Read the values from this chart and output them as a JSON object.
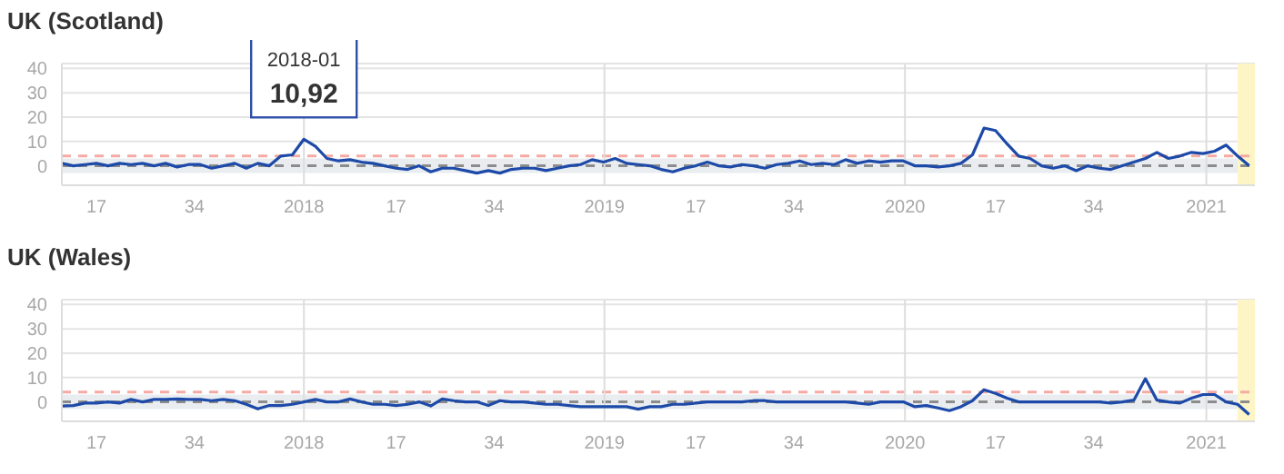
{
  "chart_data": [
    {
      "type": "line",
      "title": "UK (Scotland)",
      "marker": "none",
      "line_style": "solid",
      "grid": "y",
      "x": [
        "2017-03-13",
        "2017-03-27",
        "2017-04-10",
        "2017-04-24",
        "2017-05-08",
        "2017-05-22",
        "2017-06-05",
        "2017-06-19",
        "2017-07-03",
        "2017-07-17",
        "2017-07-31",
        "2017-08-14",
        "2017-08-28",
        "2017-09-11",
        "2017-09-25",
        "2017-10-09",
        "2017-10-23",
        "2017-11-06",
        "2017-11-20",
        "2017-12-04",
        "2017-12-18",
        "2018-01-01",
        "2018-01-15",
        "2018-01-29",
        "2018-02-12",
        "2018-02-26",
        "2018-03-12",
        "2018-03-26",
        "2018-04-09",
        "2018-04-23",
        "2018-05-07",
        "2018-05-21",
        "2018-06-04",
        "2018-06-18",
        "2018-07-02",
        "2018-07-16",
        "2018-07-30",
        "2018-08-13",
        "2018-08-27",
        "2018-09-10",
        "2018-09-24",
        "2018-10-08",
        "2018-10-22",
        "2018-11-05",
        "2018-11-19",
        "2018-12-03",
        "2018-12-17",
        "2018-12-31",
        "2019-01-14",
        "2019-01-28",
        "2019-02-11",
        "2019-02-25",
        "2019-03-11",
        "2019-03-25",
        "2019-04-08",
        "2019-04-22",
        "2019-05-06",
        "2019-05-20",
        "2019-06-03",
        "2019-06-17",
        "2019-07-01",
        "2019-07-15",
        "2019-07-29",
        "2019-08-12",
        "2019-08-26",
        "2019-09-09",
        "2019-09-23",
        "2019-10-07",
        "2019-10-21",
        "2019-11-04",
        "2019-11-18",
        "2019-12-02",
        "2019-12-16",
        "2019-12-30",
        "2020-01-13",
        "2020-01-27",
        "2020-02-10",
        "2020-02-24",
        "2020-03-09",
        "2020-03-23",
        "2020-04-06",
        "2020-04-20",
        "2020-05-04",
        "2020-05-18",
        "2020-06-01",
        "2020-06-15",
        "2020-06-29",
        "2020-07-13",
        "2020-07-27",
        "2020-08-10",
        "2020-08-24",
        "2020-09-07",
        "2020-09-21",
        "2020-10-05",
        "2020-10-19",
        "2020-11-02",
        "2020-11-16",
        "2020-11-30",
        "2020-12-14",
        "2020-12-28",
        "2021-01-11",
        "2021-01-25",
        "2021-02-08",
        "2021-02-22"
      ],
      "series": [
        {
          "color": "#1d4aa8",
          "values": [
            1,
            0,
            0.5,
            1,
            0,
            1,
            0.5,
            1,
            0,
            1,
            -0.5,
            0.5,
            0.5,
            -1,
            0,
            1,
            -1,
            1,
            0,
            4,
            4.5,
            10.92,
            8,
            3,
            2,
            2.5,
            1.5,
            1,
            0,
            -1,
            -1.5,
            0,
            -2.5,
            -1,
            -1,
            -2,
            -3,
            -2,
            -3,
            -1.5,
            -1,
            -1,
            -2,
            -1,
            0,
            0.5,
            2.5,
            1.5,
            3,
            1,
            0.5,
            0,
            -1.5,
            -2.5,
            -1,
            0,
            1.5,
            0,
            -0.5,
            0.5,
            0,
            -1,
            0.5,
            1,
            2,
            0.5,
            1,
            0.5,
            2.5,
            1,
            2,
            1.5,
            2,
            2,
            0,
            0,
            -0.5,
            0,
            1,
            4.5,
            15.5,
            14.5,
            9,
            4,
            3,
            0,
            -1,
            0,
            -2,
            0,
            -1,
            -1.5,
            0,
            1.5,
            3,
            5.5,
            3,
            4,
            5.5,
            5,
            6,
            8.5,
            4,
            0
          ]
        }
      ],
      "xlim": [
        "2017-03-13",
        "2021-03-01"
      ],
      "xticks": [
        {
          "value": "2017-04-24",
          "label": "17"
        },
        {
          "value": "2017-08-21",
          "label": "34"
        },
        {
          "value": "2018-01-01",
          "label": "2018"
        },
        {
          "value": "2018-04-23",
          "label": "17"
        },
        {
          "value": "2018-08-20",
          "label": "34"
        },
        {
          "value": "2019-01-01",
          "label": "2019"
        },
        {
          "value": "2019-04-22",
          "label": "17"
        },
        {
          "value": "2019-08-19",
          "label": "34"
        },
        {
          "value": "2020-01-01",
          "label": "2020"
        },
        {
          "value": "2020-04-20",
          "label": "17"
        },
        {
          "value": "2020-08-17",
          "label": "34"
        },
        {
          "value": "2021-01-01",
          "label": "2021"
        }
      ],
      "ylim": [
        -8,
        42
      ],
      "yticks": [
        0,
        10,
        20,
        30,
        40
      ],
      "ref_lines": [
        {
          "axis": "y",
          "value": 4,
          "color": "#f5aaa4",
          "line_style": "dashed"
        },
        {
          "axis": "y",
          "value": 0,
          "color": "#8c8c8c",
          "line_style": "dashed"
        },
        {
          "axis": "x",
          "value": "2018-01-01",
          "color": "#dddddd",
          "line_style": "solid"
        },
        {
          "axis": "x",
          "value": "2019-01-01",
          "color": "#dddddd",
          "line_style": "solid"
        },
        {
          "axis": "x",
          "value": "2020-01-01",
          "color": "#dddddd",
          "line_style": "solid"
        },
        {
          "axis": "x",
          "value": "2021-01-01",
          "color": "#dddddd",
          "line_style": "solid"
        }
      ],
      "bands": [
        {
          "axis": "y",
          "from": -3,
          "to": 3,
          "color": "#e9edf0"
        },
        {
          "axis": "x",
          "from": "2021-02-08",
          "to": "2021-03-01",
          "color": "#fdf5c6"
        }
      ],
      "annotations": [
        "2018-01",
        {
          "text": "10,92",
          "x": "2018-01-01",
          "y": 10.92
        }
      ]
    },
    {
      "type": "line",
      "title": "UK (Wales)",
      "marker": "none",
      "line_style": "solid",
      "grid": "y",
      "x": [
        "2017-03-13",
        "2017-03-27",
        "2017-04-10",
        "2017-04-24",
        "2017-05-08",
        "2017-05-22",
        "2017-06-05",
        "2017-06-19",
        "2017-07-03",
        "2017-07-17",
        "2017-07-31",
        "2017-08-14",
        "2017-08-28",
        "2017-09-11",
        "2017-09-25",
        "2017-10-09",
        "2017-10-23",
        "2017-11-06",
        "2017-11-20",
        "2017-12-04",
        "2017-12-18",
        "2018-01-01",
        "2018-01-15",
        "2018-01-29",
        "2018-02-12",
        "2018-02-26",
        "2018-03-12",
        "2018-03-26",
        "2018-04-09",
        "2018-04-23",
        "2018-05-07",
        "2018-05-21",
        "2018-06-04",
        "2018-06-18",
        "2018-07-02",
        "2018-07-16",
        "2018-07-30",
        "2018-08-13",
        "2018-08-27",
        "2018-09-10",
        "2018-09-24",
        "2018-10-08",
        "2018-10-22",
        "2018-11-05",
        "2018-11-19",
        "2018-12-03",
        "2018-12-17",
        "2018-12-31",
        "2019-01-14",
        "2019-01-28",
        "2019-02-11",
        "2019-02-25",
        "2019-03-11",
        "2019-03-25",
        "2019-04-08",
        "2019-04-22",
        "2019-05-06",
        "2019-05-20",
        "2019-06-03",
        "2019-06-17",
        "2019-07-01",
        "2019-07-15",
        "2019-07-29",
        "2019-08-12",
        "2019-08-26",
        "2019-09-09",
        "2019-09-23",
        "2019-10-07",
        "2019-10-21",
        "2019-11-04",
        "2019-11-18",
        "2019-12-02",
        "2019-12-16",
        "2019-12-30",
        "2020-01-13",
        "2020-01-27",
        "2020-02-10",
        "2020-02-24",
        "2020-03-09",
        "2020-03-23",
        "2020-04-06",
        "2020-04-20",
        "2020-05-04",
        "2020-05-18",
        "2020-06-01",
        "2020-06-15",
        "2020-06-29",
        "2020-07-13",
        "2020-07-27",
        "2020-08-10",
        "2020-08-24",
        "2020-09-07",
        "2020-09-21",
        "2020-10-05",
        "2020-10-19",
        "2020-11-02",
        "2020-11-16",
        "2020-11-30",
        "2020-12-14",
        "2020-12-28",
        "2021-01-11",
        "2021-01-25",
        "2021-02-08",
        "2021-02-22"
      ],
      "series": [
        {
          "color": "#1d4aa8",
          "values": [
            -1.7,
            -1.5,
            -0.5,
            -0.5,
            0,
            -0.5,
            1,
            0,
            1,
            1,
            1.2,
            1,
            1,
            0.5,
            1,
            0.5,
            -1,
            -2.9,
            -1.5,
            -1.5,
            -1,
            0,
            1,
            0,
            0,
            1.2,
            0,
            -1,
            -1,
            -1.5,
            -1,
            0,
            -1.7,
            1.2,
            0.5,
            0,
            0,
            -1.5,
            0.5,
            0,
            0,
            -0.5,
            -1,
            -1,
            -1.5,
            -2,
            -2,
            -2,
            -2,
            -2,
            -3,
            -2,
            -2,
            -1,
            -1,
            -0.5,
            0,
            0,
            0,
            0,
            0.5,
            0.5,
            0,
            0,
            0,
            0,
            0,
            0,
            0,
            -0.5,
            -1,
            0,
            0,
            0,
            -2,
            -1.5,
            -2.5,
            -3.6,
            -2,
            0.5,
            5,
            3.5,
            1.5,
            0,
            0,
            0,
            0,
            0,
            0,
            0,
            0,
            -0.5,
            0,
            0.7,
            9.5,
            0.7,
            0,
            -0.5,
            1.5,
            3,
            3,
            0,
            -1,
            -5.2
          ]
        }
      ],
      "xlim": [
        "2017-03-13",
        "2021-03-01"
      ],
      "xticks": [
        {
          "value": "2017-04-24",
          "label": "17"
        },
        {
          "value": "2017-08-21",
          "label": "34"
        },
        {
          "value": "2018-01-01",
          "label": "2018"
        },
        {
          "value": "2018-04-23",
          "label": "17"
        },
        {
          "value": "2018-08-20",
          "label": "34"
        },
        {
          "value": "2019-01-01",
          "label": "2019"
        },
        {
          "value": "2019-04-22",
          "label": "17"
        },
        {
          "value": "2019-08-19",
          "label": "34"
        },
        {
          "value": "2020-01-01",
          "label": "2020"
        },
        {
          "value": "2020-04-20",
          "label": "17"
        },
        {
          "value": "2020-08-17",
          "label": "34"
        },
        {
          "value": "2021-01-01",
          "label": "2021"
        }
      ],
      "ylim": [
        -8,
        42
      ],
      "yticks": [
        0,
        10,
        20,
        30,
        40
      ],
      "ref_lines": [
        {
          "axis": "y",
          "value": 4,
          "color": "#f5aaa4",
          "line_style": "dashed"
        },
        {
          "axis": "y",
          "value": 0,
          "color": "#8c8c8c",
          "line_style": "dashed"
        },
        {
          "axis": "x",
          "value": "2018-01-01",
          "color": "#dddddd",
          "line_style": "solid"
        },
        {
          "axis": "x",
          "value": "2019-01-01",
          "color": "#dddddd",
          "line_style": "solid"
        },
        {
          "axis": "x",
          "value": "2020-01-01",
          "color": "#dddddd",
          "line_style": "solid"
        },
        {
          "axis": "x",
          "value": "2021-01-01",
          "color": "#dddddd",
          "line_style": "solid"
        }
      ],
      "bands": [
        {
          "axis": "y",
          "from": -3,
          "to": 3,
          "color": "#e9edf0"
        },
        {
          "axis": "x",
          "from": "2021-02-08",
          "to": "2021-03-01",
          "color": "#fdf5c6"
        }
      ]
    }
  ]
}
